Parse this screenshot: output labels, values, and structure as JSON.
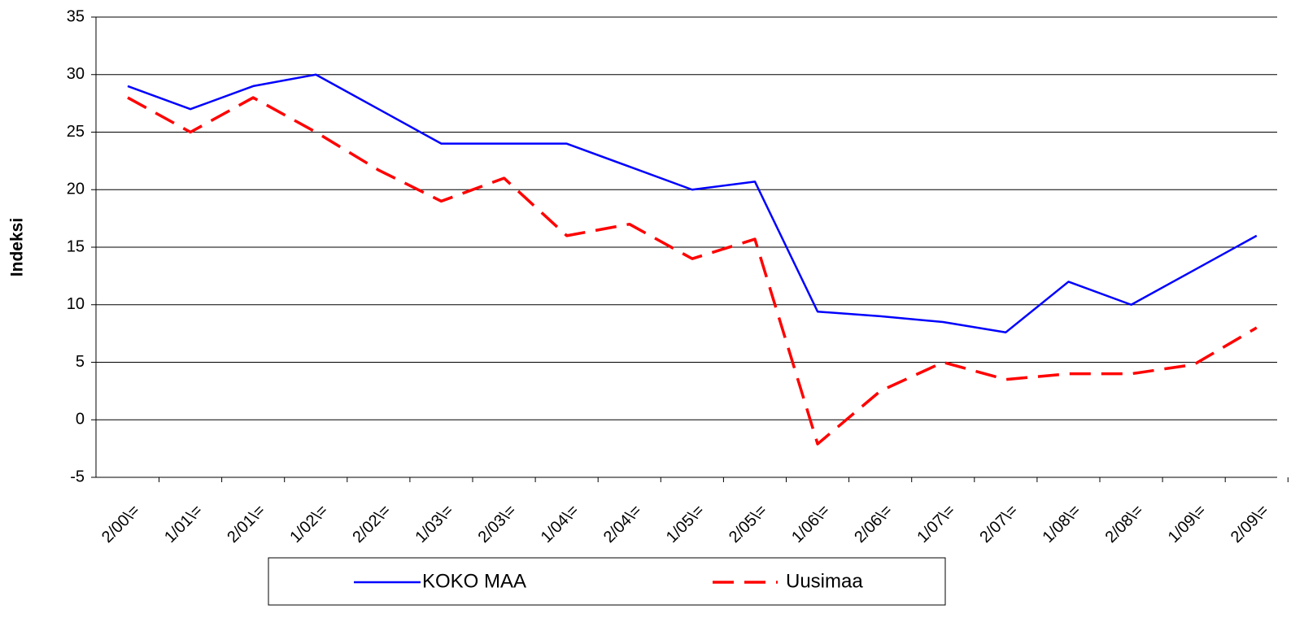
{
  "chart_data": {
    "type": "line",
    "y_label": "Indeksi",
    "categories": [
      "2/00\\=",
      "1/01\\=",
      "2/01\\=",
      "1/02\\=",
      "2/02\\=",
      "1/03\\=",
      "2/03\\=",
      "1/04\\=",
      "2/04\\=",
      "1/05\\=",
      "2/05\\=",
      "1/06\\=",
      "2/06\\=",
      "1/07\\=",
      "2/07\\=",
      "1/08\\=",
      "2/08\\=",
      "1/09\\=",
      "2/09\\="
    ],
    "series": [
      {
        "name": "KOKO MAA",
        "color": "#0000ff",
        "dashed": false,
        "values": [
          29,
          27,
          29,
          30,
          27,
          24,
          24,
          24,
          22,
          20,
          20.7,
          9.4,
          9,
          8.5,
          7.6,
          12,
          10,
          13,
          16
        ]
      },
      {
        "name": "Uusimaa",
        "color": "#ff0000",
        "dashed": true,
        "values": [
          28,
          25,
          28,
          25,
          21.7,
          19,
          21,
          16,
          17,
          14,
          15.7,
          -2.1,
          2.5,
          5,
          3.5,
          4,
          4,
          4.8,
          8
        ]
      }
    ],
    "ylim": [
      -5,
      35
    ],
    "yticks": [
      -5,
      0,
      5,
      10,
      15,
      20,
      25,
      30,
      35
    ],
    "grid": true,
    "legend": "bottom"
  }
}
